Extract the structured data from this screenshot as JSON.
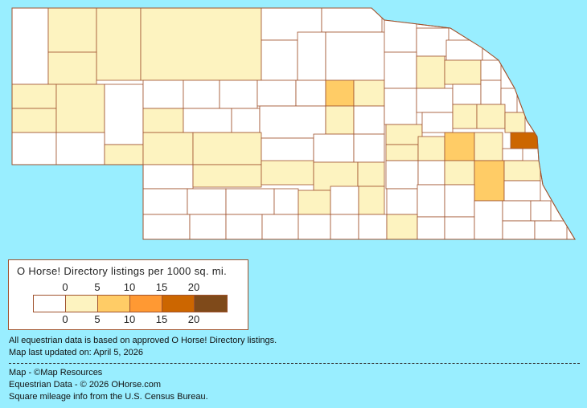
{
  "legend": {
    "title": "O Horse! Directory listings per 1000 sq. mi.",
    "top_ticks": [
      "0",
      "5",
      "10",
      "15",
      "20"
    ],
    "bottom_ticks": [
      "0",
      "5",
      "10",
      "15",
      "20"
    ],
    "colors": [
      "#FFFFFF",
      "#FDF3C0",
      "#FFCC66",
      "#FF9933",
      "#CC6600",
      "#7F4A1A"
    ]
  },
  "notes": {
    "data_basis": "All equestrian data is based on approved O Horse! Directory listings.",
    "updated": "Map last updated on: April 5, 2026"
  },
  "credits": {
    "map": "Map - ©Map Resources",
    "data": "Equestrian Data - © 2026 OHorse.com",
    "census": "Square mileage info from the U.S. Census Bureau."
  },
  "colors": {
    "background": "#99EEFF",
    "border": "#A0522D"
  }
}
